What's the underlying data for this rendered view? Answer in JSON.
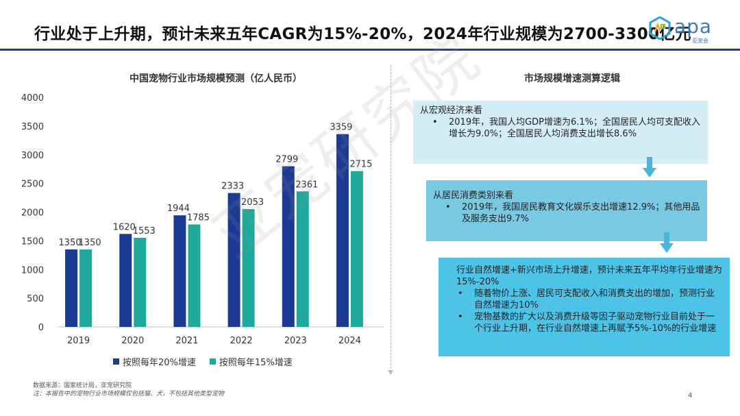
{
  "slide": {
    "title": "行业处于上升期，预计未来五年CAGR为15%-20%，2024年行业规模为2700-3300亿元",
    "page_number": "4",
    "watermark": "亚宠研究院"
  },
  "logo": {
    "brand": "apa",
    "sub": "亚宠会",
    "mark_colors": [
      "#f5a623",
      "#8cc63f",
      "#2f9fd8",
      "#1b75bb"
    ]
  },
  "chart_data": {
    "type": "bar",
    "title": "中国宠物行业市场规模预测（亿人民币）",
    "categories": [
      "2019",
      "2020",
      "2021",
      "2022",
      "2023",
      "2024"
    ],
    "series": [
      {
        "name": "按照每年20%增速",
        "values": [
          1350,
          1620,
          1944,
          2333,
          2799,
          3359
        ],
        "color": "#1a3a93"
      },
      {
        "name": "按照每年15%增速",
        "values": [
          1350,
          1553,
          1785,
          2053,
          2361,
          2715
        ],
        "color": "#1ea99a"
      }
    ],
    "ylim": [
      0,
      4000
    ],
    "yticks": [
      0,
      500,
      1000,
      1500,
      2000,
      2500,
      3000,
      3500,
      4000
    ],
    "xlabel": "",
    "ylabel": "",
    "grid": false,
    "legend": "bottom"
  },
  "source": {
    "line1": "数据来源：国家统计局，亚宠研究院",
    "line2": "注：本报告中的宠物行业市场规模仅包括猫、犬，不包括其他类型宠物"
  },
  "logic": {
    "title": "市场规模增速测算逻辑",
    "box1": {
      "head": "从宏观经济来看",
      "bullets": [
        "2019年，我国人均GDP增速为6.1%；全国居民人均可支配收入增长为9.0%；全国居民人均消费支出增长8.6%"
      ]
    },
    "box2": {
      "head": "从居民消费类别来看",
      "bullets": [
        "2019年，我国居民教育文化娱乐支出增速12.9%；其他用品及服务支出9.7%"
      ]
    },
    "box3": {
      "head": "行业自然增速+新兴市场上升增速，预计未来五年平均年行业增速为15%-20%",
      "bullets": [
        "随着物价上涨、居民可支配收入和消费支出的增加，预测行业自然增速为10%",
        "宠物基数的扩大以及消费升级等因子驱动宠物行业目前处于一个行业上升期，在行业自然增速上再赋予5%-10%的行业增速"
      ]
    },
    "arrow_color": "#4ab6df"
  }
}
